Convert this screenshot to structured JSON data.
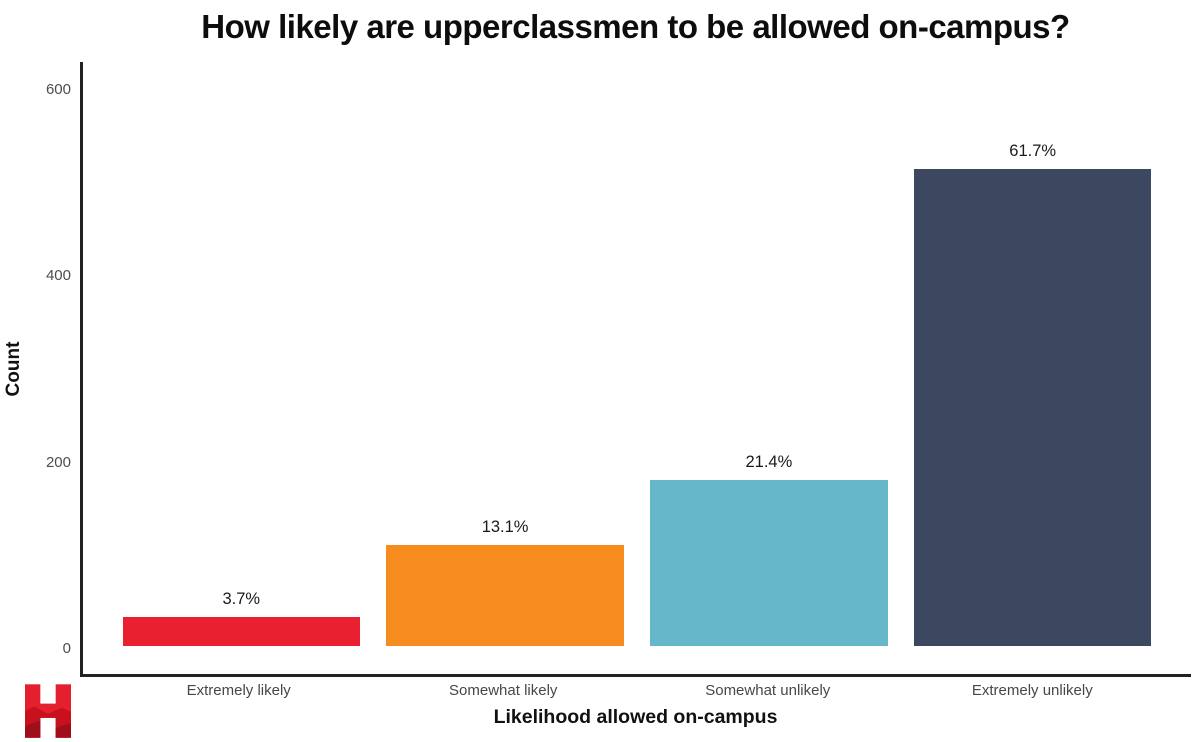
{
  "chart_data": {
    "type": "bar",
    "title": "How likely are upperclassmen to be allowed on-campus?",
    "xlabel": "Likelihood allowed on-campus",
    "ylabel": "Count",
    "categories": [
      "Extremely likely",
      "Somewhat likely",
      "Somewhat unlikely",
      "Extremely unlikely"
    ],
    "values": [
      31,
      109,
      179,
      515
    ],
    "bar_labels": [
      "3.7%",
      "13.1%",
      "21.4%",
      "61.7%"
    ],
    "bar_colors": [
      "#e82030",
      "#f68c1e",
      "#67b7ca",
      "#3c4760"
    ],
    "yticks": [
      0,
      200,
      400,
      600
    ],
    "ylim": [
      -30,
      630
    ],
    "bar_slot_units": 4.2,
    "bar_width_units": 0.9,
    "grid": false,
    "legend": false,
    "axis_line_color": "#222222",
    "tick_label_color": "#4d4d4d"
  },
  "branding": {
    "logo_name": "crimson-h-logo",
    "logo_letter": "H",
    "logo_color": "#e5202e",
    "logo_shade_mid": "#c8101f",
    "logo_shade_dark": "#9e0f1a"
  }
}
